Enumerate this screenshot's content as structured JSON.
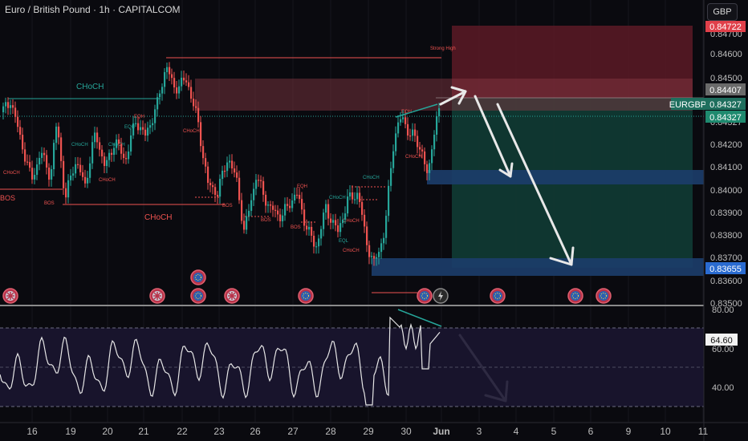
{
  "header": {
    "title": "Euro / British Pound · 1h · CAPITALCOM",
    "currency_button": "GBP"
  },
  "price_axis": {
    "ticks": [
      "0.84700",
      "0.84600",
      "0.84500",
      "0.84327",
      "0.84200",
      "0.84100",
      "0.84000",
      "0.83900",
      "0.83800",
      "0.83700",
      "0.83600",
      "0.83500"
    ],
    "labels": {
      "stop": "0.84722",
      "entry": "0.84407",
      "symbol": "EURGBP",
      "current_mid": "0.84327",
      "current": "0.84327",
      "target": "0.83655"
    }
  },
  "rsi_axis": {
    "ticks": [
      "80.00",
      "60.00",
      "40.00"
    ],
    "value": "64.60"
  },
  "time_axis": {
    "ticks": [
      "16",
      "19",
      "20",
      "21",
      "22",
      "23",
      "26",
      "27",
      "28",
      "29",
      "30",
      "Jun",
      "3",
      "4",
      "5",
      "6",
      "9",
      "10",
      "11"
    ]
  },
  "annotations": {
    "choch_top": "CHoCH",
    "choch_bottom": "CHoCH",
    "bos": "BOS",
    "strong_high": "Strong High",
    "eqh": "EQH",
    "eql": "EQL",
    "small": [
      "CHoCH",
      "CHoCH",
      "CHoCH",
      "CHoCH",
      "CHoCH",
      "CHoCH",
      "CHoCH",
      "CHoCH",
      "CHoCH",
      "CHoCH",
      "BOS",
      "BOS",
      "BOS",
      "BOS",
      "EQH",
      "EQH",
      "EQH"
    ]
  },
  "event_icons": [
    "uk-flag-icon",
    "uk-flag-icon",
    "eu-flag-icon",
    "uk-flag-icon",
    "eu-flag-icon",
    "eu-flag-icon",
    "eu-flag-icon",
    "lightning-icon",
    "eu-flag-icon",
    "eu-flag-icon",
    "eu-flag-icon"
  ],
  "colors": {
    "up": "#26a69a",
    "down": "#ef5350",
    "stop_zone": "#5c1a26",
    "target_zone": "#0f3b34",
    "demand": "#1c3d6b",
    "rsi": "#e6e6e6",
    "arrow": "#e8e8e8"
  }
}
